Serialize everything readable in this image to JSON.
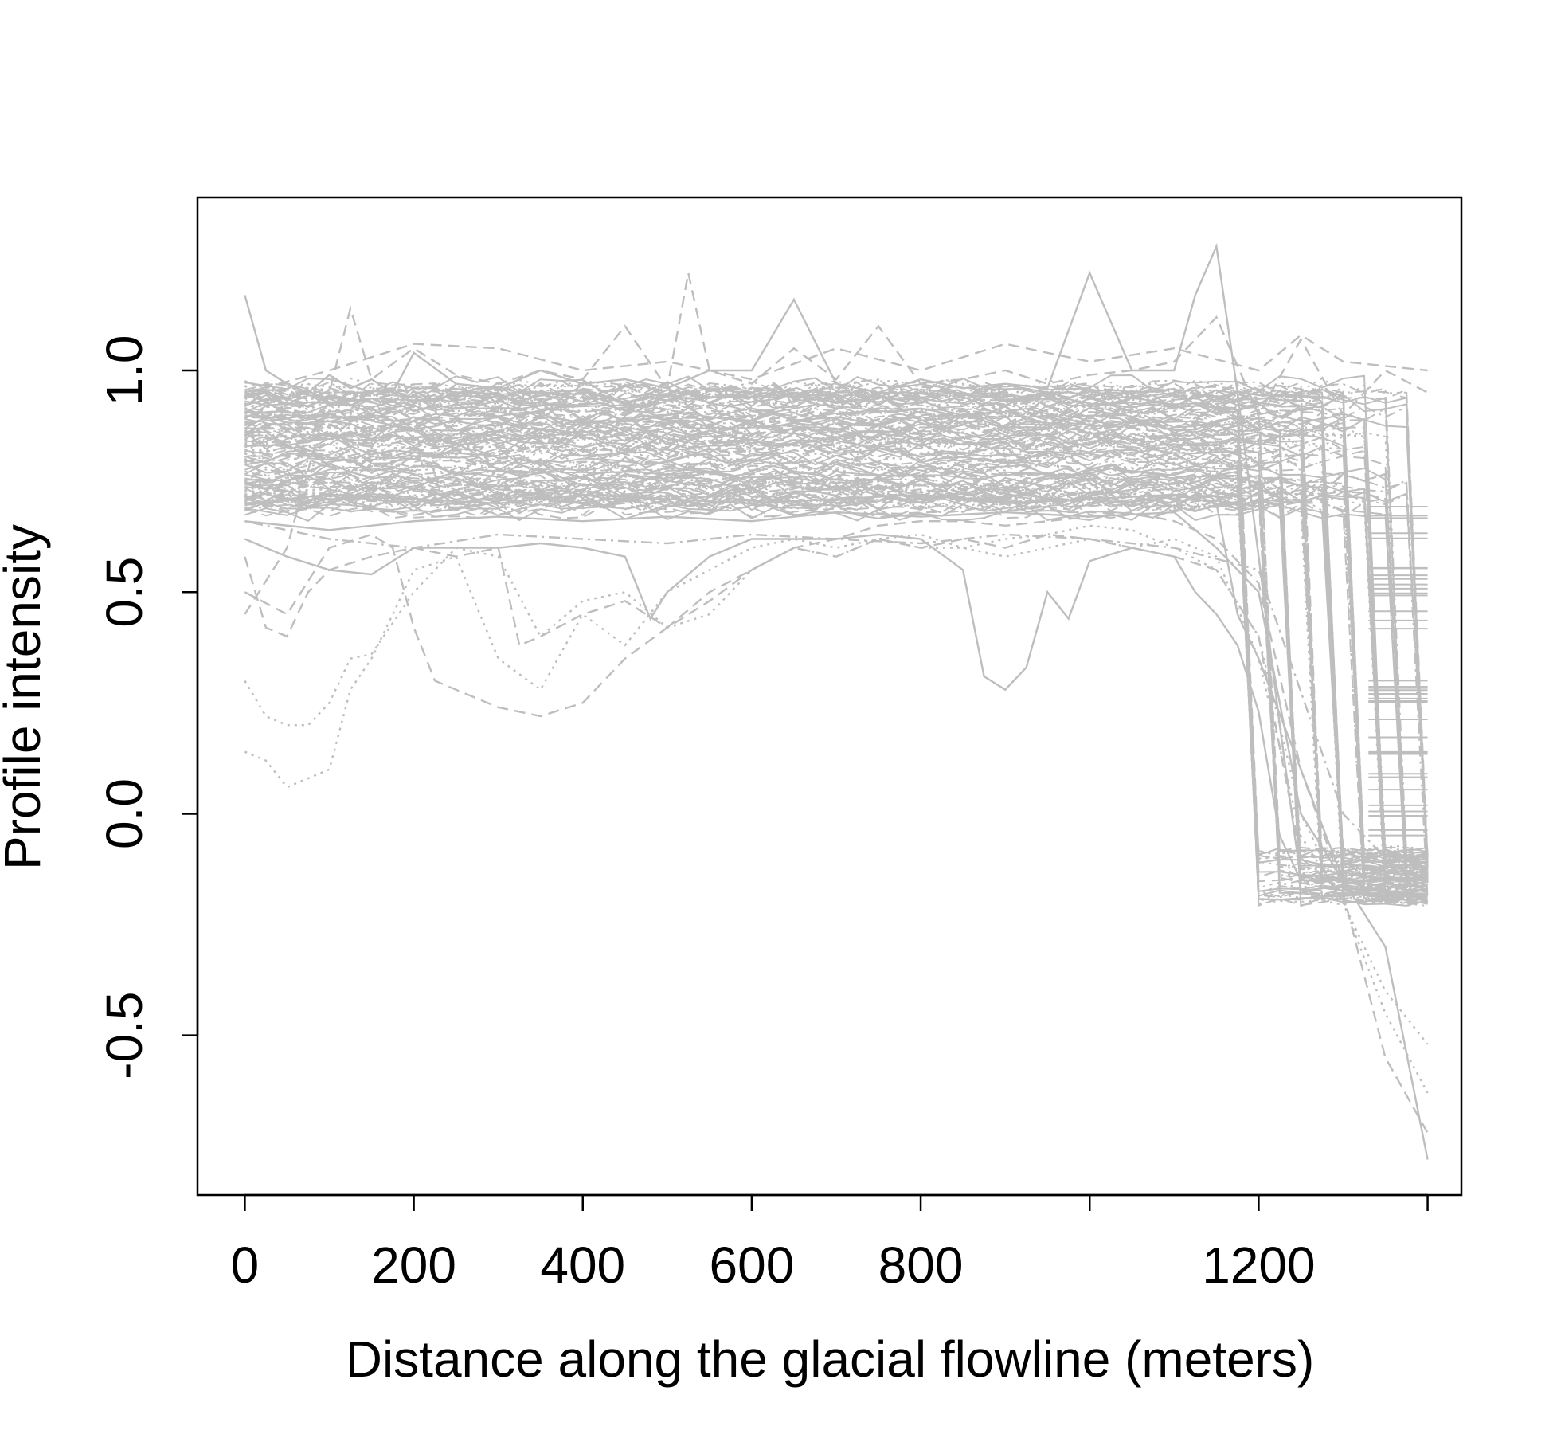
{
  "chart_data": {
    "type": "line",
    "title": "",
    "xlabel": "Distance along the glacial flowline (meters)",
    "ylabel": "Profile intensity",
    "xlim": [
      -56,
      1440
    ],
    "ylim": [
      -0.86,
      1.39
    ],
    "x_ticks": [
      0,
      200,
      400,
      600,
      800,
      1000,
      1200,
      1400
    ],
    "x_tick_labels": [
      "0",
      "200",
      "400",
      "600",
      "800",
      "",
      "1200",
      ""
    ],
    "y_ticks": [
      -0.5,
      0.0,
      0.5,
      1.0
    ],
    "y_tick_labels": [
      "-0.5",
      "0.0",
      "0.5",
      "1.0"
    ],
    "grid": false,
    "legend": "none",
    "line_color": "#BEBEBE",
    "bundle_band": {
      "x_start": 0,
      "x_end": 1400,
      "y_low": 0.68,
      "y_high": 0.97
    },
    "series": [
      {
        "style": "solid",
        "x": [
          0,
          25,
          50,
          75,
          100,
          125,
          150,
          175,
          200,
          250,
          300,
          350,
          400,
          450,
          500,
          550,
          600,
          650,
          700,
          750,
          800,
          850,
          900,
          950,
          1000,
          1050,
          1100,
          1125,
          1150,
          1175,
          1200,
          1225,
          1250,
          1300,
          1350,
          1400
        ],
        "y": [
          1.17,
          1.0,
          0.97,
          0.95,
          0.99,
          0.96,
          0.98,
          0.95,
          1.04,
          0.97,
          0.96,
          1.0,
          0.97,
          0.98,
          0.96,
          1.0,
          1.0,
          1.16,
          0.97,
          0.95,
          0.98,
          0.96,
          0.97,
          0.96,
          1.22,
          1.0,
          1.0,
          1.17,
          1.28,
          0.95,
          0.58,
          0.2,
          -0.15,
          -0.15,
          -0.15,
          -0.15
        ]
      },
      {
        "style": "dashed",
        "x": [
          0,
          50,
          100,
          125,
          150,
          200,
          250,
          300,
          350,
          400,
          450,
          500,
          525,
          550,
          600,
          650,
          700,
          750,
          800,
          850,
          900,
          950,
          1000,
          1050,
          1100,
          1150,
          1200,
          1250,
          1300,
          1350,
          1400
        ],
        "y": [
          0.45,
          0.6,
          0.95,
          1.14,
          0.98,
          1.05,
          0.99,
          0.97,
          1.0,
          0.98,
          1.1,
          0.96,
          1.22,
          1.0,
          0.97,
          1.05,
          0.98,
          1.1,
          0.97,
          0.98,
          1.0,
          0.97,
          0.99,
          1.0,
          1.02,
          1.12,
          0.9,
          1.07,
          0.9,
          1.0,
          0.95
        ]
      },
      {
        "style": "solid",
        "x": [
          0,
          50,
          100,
          150,
          200,
          250,
          300,
          350,
          400,
          450,
          480,
          500,
          550,
          600,
          650,
          700,
          750,
          800,
          850,
          875,
          900,
          925,
          950,
          975,
          1000,
          1050,
          1100,
          1125,
          1150,
          1175,
          1200,
          1225,
          1250,
          1300,
          1350,
          1400
        ],
        "y": [
          0.62,
          0.58,
          0.55,
          0.54,
          0.6,
          0.6,
          0.6,
          0.61,
          0.6,
          0.58,
          0.44,
          0.5,
          0.58,
          0.62,
          0.62,
          0.62,
          0.63,
          0.62,
          0.55,
          0.31,
          0.28,
          0.33,
          0.5,
          0.44,
          0.57,
          0.6,
          0.58,
          0.5,
          0.45,
          0.38,
          0.23,
          -0.05,
          -0.15,
          -0.15,
          -0.18,
          -0.18
        ]
      },
      {
        "style": "dashed",
        "x": [
          0,
          50,
          100,
          150,
          175,
          200,
          225,
          250,
          300,
          350,
          400,
          450,
          500,
          550,
          600,
          650,
          700,
          750,
          800,
          850,
          900,
          950,
          1000,
          1050,
          1100,
          1150,
          1200,
          1250,
          1300,
          1350,
          1400
        ],
        "y": [
          0.5,
          0.45,
          0.6,
          0.63,
          0.6,
          0.42,
          0.3,
          0.28,
          0.24,
          0.22,
          0.25,
          0.35,
          0.42,
          0.48,
          0.55,
          0.6,
          0.62,
          0.65,
          0.66,
          0.66,
          0.65,
          0.66,
          0.67,
          0.68,
          0.66,
          0.62,
          0.52,
          0.1,
          -0.17,
          -0.2,
          -0.2
        ]
      },
      {
        "style": "dotted",
        "x": [
          0,
          25,
          50,
          75,
          100,
          125,
          150,
          175,
          200,
          250,
          300,
          350,
          400,
          450,
          500,
          550,
          600,
          650,
          700,
          750,
          800,
          850,
          900,
          950,
          1000,
          1050,
          1100,
          1150,
          1200,
          1250,
          1300,
          1350,
          1400
        ],
        "y": [
          0.14,
          0.12,
          0.06,
          0.08,
          0.1,
          0.28,
          0.35,
          0.45,
          0.55,
          0.58,
          0.35,
          0.28,
          0.45,
          0.38,
          0.5,
          0.55,
          0.6,
          0.62,
          0.6,
          0.62,
          0.63,
          0.6,
          0.62,
          0.63,
          0.65,
          0.64,
          0.6,
          0.55,
          0.4,
          0.0,
          -0.2,
          -0.4,
          -0.52
        ]
      },
      {
        "style": "dotted",
        "x": [
          0,
          25,
          50,
          75,
          100,
          125,
          150,
          200,
          250,
          300,
          350,
          400,
          450,
          500,
          550,
          600,
          650,
          700,
          750,
          800,
          850,
          900,
          950,
          1000,
          1050,
          1100,
          1150,
          1200,
          1250,
          1300,
          1350,
          1400
        ],
        "y": [
          0.3,
          0.22,
          0.2,
          0.2,
          0.25,
          0.35,
          0.36,
          0.5,
          0.6,
          0.58,
          0.4,
          0.48,
          0.5,
          0.42,
          0.45,
          0.55,
          0.6,
          0.58,
          0.62,
          0.6,
          0.6,
          0.58,
          0.6,
          0.62,
          0.6,
          0.62,
          0.58,
          0.35,
          -0.05,
          -0.2,
          -0.45,
          -0.63
        ]
      },
      {
        "style": "dashed",
        "x": [
          0,
          25,
          50,
          75,
          100,
          150,
          200,
          250,
          300,
          325,
          350,
          400,
          450,
          500,
          550,
          600,
          650,
          700,
          750,
          800,
          850,
          900,
          950,
          1000,
          1050,
          1100,
          1150,
          1200,
          1250,
          1300,
          1350,
          1400
        ],
        "y": [
          0.58,
          0.42,
          0.4,
          0.5,
          0.55,
          0.58,
          0.6,
          0.58,
          0.6,
          0.38,
          0.4,
          0.45,
          0.48,
          0.42,
          0.5,
          0.55,
          0.6,
          0.58,
          0.62,
          0.6,
          0.62,
          0.6,
          0.63,
          0.62,
          0.6,
          0.58,
          0.55,
          0.4,
          -0.1,
          -0.18,
          -0.55,
          -0.72
        ]
      },
      {
        "style": "solid",
        "x": [
          0,
          100,
          200,
          300,
          400,
          500,
          600,
          700,
          800,
          900,
          1000,
          1100,
          1150,
          1200,
          1250,
          1300,
          1350,
          1400
        ],
        "y": [
          0.66,
          0.64,
          0.66,
          0.67,
          0.66,
          0.67,
          0.66,
          0.68,
          0.67,
          0.68,
          0.67,
          0.68,
          0.6,
          0.5,
          0.0,
          -0.15,
          -0.3,
          -0.78
        ]
      },
      {
        "style": "solid",
        "x": [
          0,
          100,
          200,
          300,
          400,
          500,
          600,
          700,
          800,
          900,
          1000,
          1100,
          1150,
          1175,
          1200,
          1250,
          1300,
          1350,
          1400
        ],
        "y": [
          0.7,
          0.72,
          0.71,
          0.7,
          0.72,
          0.71,
          0.7,
          0.71,
          0.72,
          0.7,
          0.71,
          0.72,
          0.7,
          0.45,
          0.35,
          0.1,
          -0.15,
          -0.15,
          -0.15
        ]
      },
      {
        "style": "dashed",
        "x": [
          0,
          100,
          200,
          300,
          400,
          500,
          600,
          700,
          800,
          900,
          1000,
          1100,
          1200,
          1250,
          1300,
          1400
        ],
        "y": [
          0.95,
          1.0,
          1.06,
          1.05,
          1.0,
          1.02,
          0.98,
          1.05,
          1.0,
          1.06,
          1.02,
          1.05,
          1.0,
          1.08,
          1.02,
          1.0
        ]
      },
      {
        "style": "dotdash",
        "x": [
          0,
          100,
          200,
          300,
          400,
          500,
          600,
          700,
          800,
          900,
          1000,
          1100,
          1200,
          1300,
          1400
        ],
        "y": [
          0.66,
          0.62,
          0.6,
          0.63,
          0.62,
          0.61,
          0.63,
          0.62,
          0.61,
          0.63,
          0.62,
          0.6,
          0.55,
          0.0,
          -0.2
        ]
      }
    ]
  }
}
